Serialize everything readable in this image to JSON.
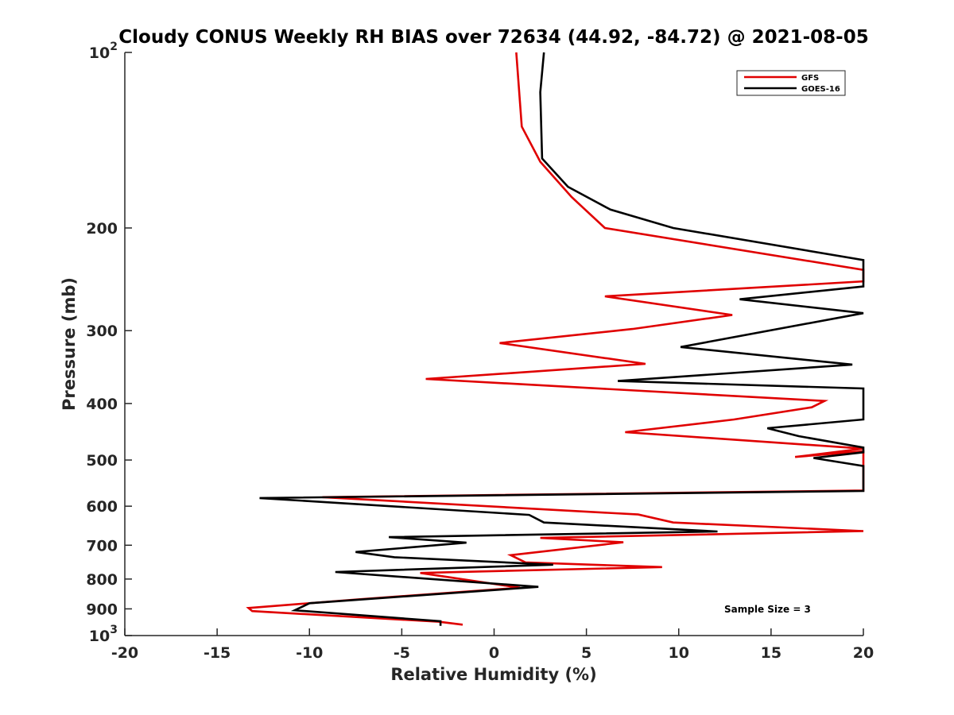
{
  "chart_data": {
    "type": "line",
    "title": "Cloudy CONUS Weekly RH BIAS over 72634 (44.92, -84.72) @ 2021-08-05",
    "xlabel": "Relative Humidity (%)",
    "ylabel": "Pressure (mb)",
    "xlim": [
      -20,
      20
    ],
    "ylim": [
      100,
      1000
    ],
    "y_scale": "log",
    "y_reversed": true,
    "grid": false,
    "legend_position": "top-right",
    "x_ticks": [
      "-20",
      "-15",
      "-10",
      "-5",
      "0",
      "5",
      "10",
      "15",
      "20"
    ],
    "y_ticks": [
      {
        "value": 100,
        "base": "10",
        "exp": "2"
      },
      {
        "value": 200,
        "base": "200",
        "exp": ""
      },
      {
        "value": 300,
        "base": "300",
        "exp": ""
      },
      {
        "value": 400,
        "base": "400",
        "exp": ""
      },
      {
        "value": 500,
        "base": "500",
        "exp": ""
      },
      {
        "value": 600,
        "base": "600",
        "exp": ""
      },
      {
        "value": 700,
        "base": "700",
        "exp": ""
      },
      {
        "value": 800,
        "base": "800",
        "exp": ""
      },
      {
        "value": 900,
        "base": "900",
        "exp": ""
      },
      {
        "value": 1000,
        "base": "10",
        "exp": "3"
      }
    ],
    "annotation": "Sample Size = 3",
    "series": [
      {
        "name": "GFS",
        "color": "#e00000",
        "points": [
          [
            1.2,
            100
          ],
          [
            1.5,
            134
          ],
          [
            2.5,
            154
          ],
          [
            4.2,
            177
          ],
          [
            6.0,
            200
          ],
          [
            20,
            236
          ],
          [
            20,
            247
          ],
          [
            6.0,
            262
          ],
          [
            12.9,
            282
          ],
          [
            7.5,
            298
          ],
          [
            0.3,
            315
          ],
          [
            8.2,
            342
          ],
          [
            -3.7,
            363
          ],
          [
            17.9,
            396
          ],
          [
            17.2,
            406
          ],
          [
            13.0,
            426
          ],
          [
            7.1,
            448
          ],
          [
            20,
            478
          ],
          [
            16.3,
            494
          ],
          [
            20,
            483
          ],
          [
            20,
            564
          ],
          [
            -9.3,
            579
          ],
          [
            7.8,
            620
          ],
          [
            9.7,
            640
          ],
          [
            20,
            662
          ],
          [
            2.5,
            680
          ],
          [
            7.0,
            692
          ],
          [
            0.9,
            728
          ],
          [
            1.7,
            749
          ],
          [
            9.1,
            763
          ],
          [
            -4.0,
            781
          ],
          [
            1.4,
            828
          ],
          [
            -7.4,
            867
          ],
          [
            -13.3,
            897
          ],
          [
            -13.1,
            908
          ],
          [
            -3.0,
            947
          ],
          [
            -1.7,
            958
          ]
        ]
      },
      {
        "name": "GOES-16",
        "color": "#000000",
        "points": [
          [
            2.7,
            100
          ],
          [
            2.5,
            117
          ],
          [
            2.6,
            152
          ],
          [
            4.0,
            170
          ],
          [
            6.3,
            186
          ],
          [
            9.7,
            200
          ],
          [
            20,
            227
          ],
          [
            20,
            252
          ],
          [
            13.3,
            265
          ],
          [
            20,
            280
          ],
          [
            10.1,
            320
          ],
          [
            19.4,
            343
          ],
          [
            6.7,
            366
          ],
          [
            20,
            377
          ],
          [
            20,
            426
          ],
          [
            14.8,
            441
          ],
          [
            16.5,
            455
          ],
          [
            20,
            476
          ],
          [
            20,
            485
          ],
          [
            17.3,
            496
          ],
          [
            20,
            512
          ],
          [
            20,
            565
          ],
          [
            -12.7,
            581
          ],
          [
            1.9,
            621
          ],
          [
            2.7,
            640
          ],
          [
            12.1,
            663
          ],
          [
            -5.7,
            678
          ],
          [
            -1.5,
            693
          ],
          [
            -7.5,
            719
          ],
          [
            -5.4,
            734
          ],
          [
            3.2,
            756
          ],
          [
            -8.6,
            778
          ],
          [
            2.4,
            825
          ],
          [
            -10.0,
            880
          ],
          [
            -10.8,
            905
          ],
          [
            -2.9,
            945
          ],
          [
            -2.9,
            962
          ]
        ]
      }
    ]
  }
}
